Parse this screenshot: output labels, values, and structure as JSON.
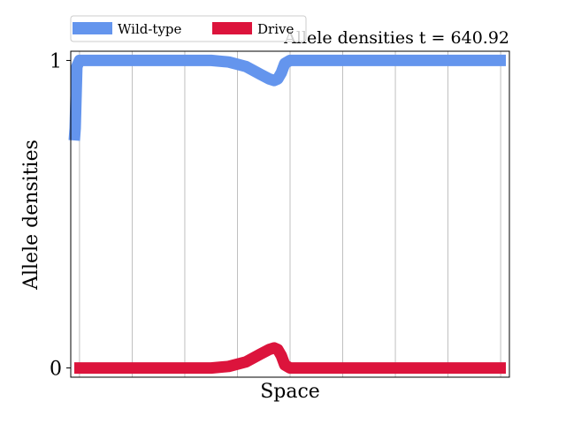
{
  "chart_data": {
    "type": "line",
    "title": "Allele densities t = 640.92",
    "xlabel": "Space",
    "ylabel": "Allele densities",
    "yticks": [
      {
        "value": 0,
        "label": "0"
      },
      {
        "value": 1,
        "label": "1"
      }
    ],
    "ylim": [
      -0.03,
      1.03
    ],
    "xlim": [
      -0.5,
      24.5
    ],
    "x_gridlines": [
      0,
      3,
      6,
      9,
      12,
      15,
      18,
      21,
      24
    ],
    "grid": "vertical",
    "legend_position": "top-left",
    "series": [
      {
        "name": "Wild-type",
        "color": "#6495ed",
        "points": [
          [
            -0.3,
            0.74
          ],
          [
            -0.25,
            0.78
          ],
          [
            -0.15,
            0.98
          ],
          [
            0,
            1.0
          ],
          [
            3,
            1.0
          ],
          [
            6,
            1.0
          ],
          [
            7.5,
            1.0
          ],
          [
            8.5,
            0.995
          ],
          [
            9.5,
            0.98
          ],
          [
            10.3,
            0.955
          ],
          [
            10.8,
            0.94
          ],
          [
            11.1,
            0.935
          ],
          [
            11.3,
            0.94
          ],
          [
            11.5,
            0.96
          ],
          [
            11.7,
            0.99
          ],
          [
            12,
            1.0
          ],
          [
            15,
            1.0
          ],
          [
            18,
            1.0
          ],
          [
            21,
            1.0
          ],
          [
            24.3,
            1.0
          ]
        ]
      },
      {
        "name": "Drive",
        "color": "#dc143c",
        "points": [
          [
            -0.3,
            0.0
          ],
          [
            3,
            0.0
          ],
          [
            6,
            0.0
          ],
          [
            7.5,
            0.0
          ],
          [
            8.5,
            0.005
          ],
          [
            9.5,
            0.02
          ],
          [
            10.3,
            0.045
          ],
          [
            10.8,
            0.06
          ],
          [
            11.1,
            0.065
          ],
          [
            11.3,
            0.06
          ],
          [
            11.5,
            0.04
          ],
          [
            11.7,
            0.01
          ],
          [
            12,
            0.0
          ],
          [
            15,
            0.0
          ],
          [
            18,
            0.0
          ],
          [
            21,
            0.0
          ],
          [
            24.3,
            0.0
          ]
        ]
      }
    ]
  }
}
